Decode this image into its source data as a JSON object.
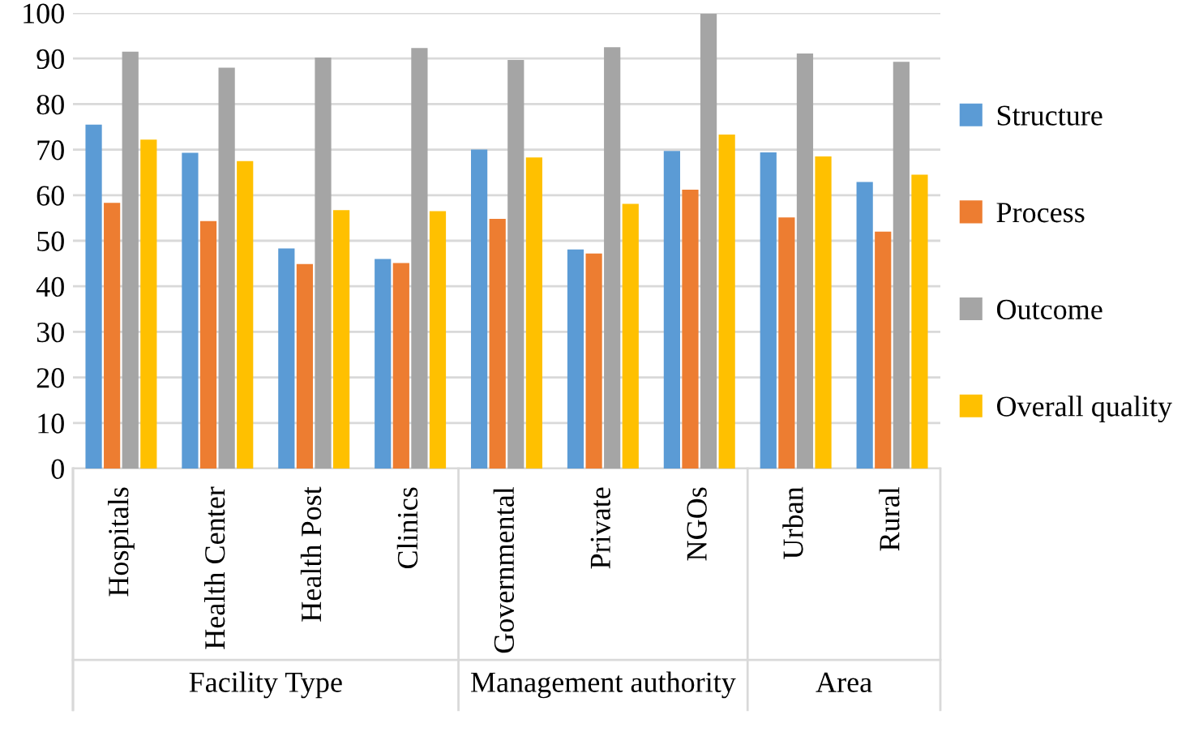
{
  "chart_data": {
    "type": "bar",
    "categories": [
      "Hospitals",
      "Health Center",
      "Health Post",
      "Clinics",
      "Governmental",
      "Private",
      "NGOs",
      "Urban",
      "Rural"
    ],
    "series": [
      {
        "name": "Structure",
        "color": "#5b9bd5",
        "values": [
          75.5,
          69.3,
          48.3,
          46,
          70,
          48.1,
          69.7,
          69.4,
          62.9
        ]
      },
      {
        "name": "Process",
        "color": "#ed7d31",
        "values": [
          58.3,
          54.3,
          44.9,
          45.1,
          54.8,
          47.2,
          61.2,
          55.1,
          52
        ]
      },
      {
        "name": "Outcome",
        "color": "#a5a5a5",
        "values": [
          91.5,
          88,
          90.2,
          92.3,
          89.7,
          92.5,
          99.8,
          91.1,
          89.3
        ]
      },
      {
        "name": "Overall quality",
        "color": "#ffc000",
        "values": [
          72.2,
          67.5,
          56.7,
          56.5,
          68.3,
          58.1,
          73.3,
          68.5,
          64.5
        ]
      }
    ],
    "annotations": [
      "Facility Type",
      "Management authority",
      "Area"
    ],
    "ylim": [
      0,
      100
    ],
    "yticks": [
      0,
      10,
      20,
      30,
      40,
      50,
      60,
      70,
      80,
      90,
      100
    ],
    "grid": "y",
    "legend": "right"
  }
}
